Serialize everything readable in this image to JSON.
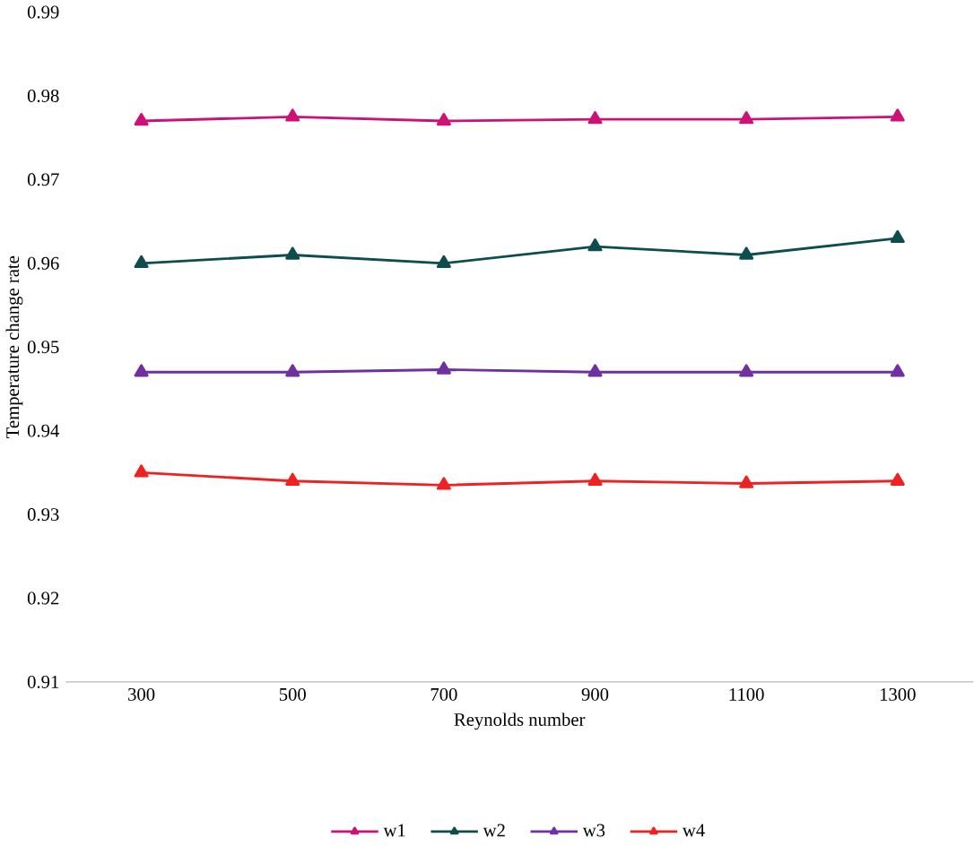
{
  "chart_data": {
    "type": "line",
    "xlabel": "Reynolds number",
    "ylabel": "Temperature change rate",
    "categories": [
      "300",
      "500",
      "700",
      "900",
      "1100",
      "1300"
    ],
    "series": [
      {
        "name": "w1",
        "color": "#cc1177",
        "values": [
          0.977,
          0.9775,
          0.977,
          0.9772,
          0.9772,
          0.9775
        ]
      },
      {
        "name": "w2",
        "color": "#0d4d4d",
        "values": [
          0.96,
          0.961,
          0.96,
          0.962,
          0.961,
          0.963
        ]
      },
      {
        "name": "w3",
        "color": "#7030a0",
        "values": [
          0.947,
          0.947,
          0.9473,
          0.947,
          0.947,
          0.947
        ]
      },
      {
        "name": "w4",
        "color": "#ee2222",
        "values": [
          0.935,
          0.934,
          0.9335,
          0.934,
          0.9337,
          0.934
        ]
      }
    ],
    "ylim": [
      0.91,
      0.99
    ],
    "yticks": [
      0.91,
      0.92,
      0.93,
      0.94,
      0.95,
      0.96,
      0.97,
      0.98,
      0.99
    ],
    "grid": false,
    "legend": "bottom",
    "marker": "triangle",
    "line_style": "solid"
  }
}
